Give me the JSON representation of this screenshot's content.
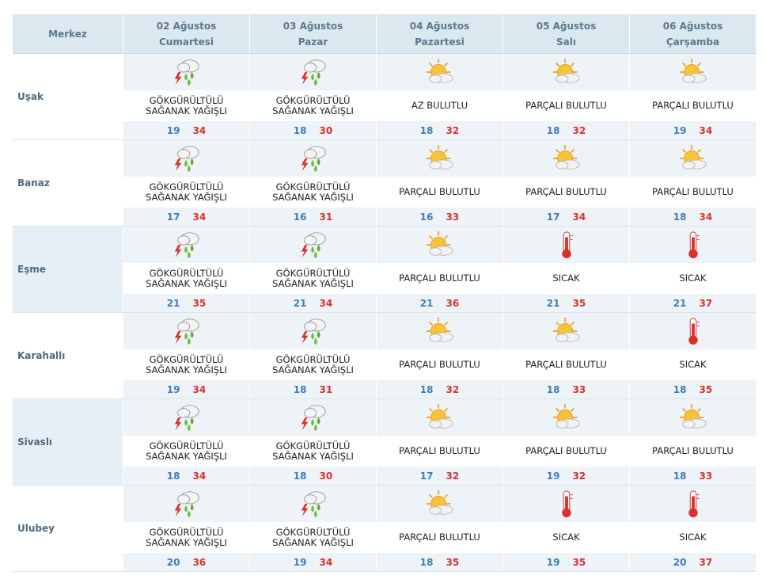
{
  "header": {
    "corner": "Merkez",
    "days": [
      {
        "date": "02 Ağustos",
        "day": "Cumartesi"
      },
      {
        "date": "03 Ağustos",
        "day": "Pazar"
      },
      {
        "date": "04 Ağustos",
        "day": "Pazartesi"
      },
      {
        "date": "05 Ağustos",
        "day": "Salı"
      },
      {
        "date": "06 Ağustos",
        "day": "Çarşamba"
      }
    ]
  },
  "rows": [
    {
      "city": "Uşak",
      "forecasts": [
        {
          "condition": "GÖKGÜRÜLTÜLÜ\nSAĞANAK YAĞIŞLI",
          "min": 19,
          "max": 34
        },
        {
          "condition": "GÖKGÜRÜLTÜLÜ\nSAĞANAK YAĞIŞLI",
          "min": 18,
          "max": 30
        },
        {
          "condition": "AZ BULUTLU",
          "min": 18,
          "max": 32
        },
        {
          "condition": "PARÇALI BULUTLU",
          "min": 18,
          "max": 32
        },
        {
          "condition": "PARÇALI BULUTLU",
          "min": 19,
          "max": 34
        }
      ]
    },
    {
      "city": "Banaz",
      "forecasts": [
        {
          "condition": "GÖKGÜRÜLTÜLÜ\nSAĞANAK YAĞIŞLI",
          "min": 17,
          "max": 34
        },
        {
          "condition": "GÖKGÜRÜLTÜLÜ\nSAĞANAK YAĞIŞLI",
          "min": 16,
          "max": 31
        },
        {
          "condition": "PARÇALI BULUTLU",
          "min": 16,
          "max": 33
        },
        {
          "condition": "PARÇALI BULUTLU",
          "min": 17,
          "max": 34
        },
        {
          "condition": "PARÇALI BULUTLU",
          "min": 18,
          "max": 34
        }
      ]
    },
    {
      "city": "Eşme",
      "forecasts": [
        {
          "condition": "GÖKGÜRÜLTÜLÜ\nSAĞANAK YAĞIŞLI",
          "min": 21,
          "max": 35
        },
        {
          "condition": "GÖKGÜRÜLTÜLÜ\nSAĞANAK YAĞIŞLI",
          "min": 21,
          "max": 34
        },
        {
          "condition": "PARÇALI BULUTLU",
          "min": 21,
          "max": 36
        },
        {
          "condition": "SICAK",
          "min": 21,
          "max": 35
        },
        {
          "condition": "SICAK",
          "min": 21,
          "max": 37
        }
      ]
    },
    {
      "city": "Karahallı",
      "forecasts": [
        {
          "condition": "GÖKGÜRÜLTÜLÜ\nSAĞANAK YAĞIŞLI",
          "min": 19,
          "max": 34
        },
        {
          "condition": "GÖKGÜRÜLTÜLÜ\nSAĞANAK YAĞIŞLI",
          "min": 18,
          "max": 31
        },
        {
          "condition": "PARÇALI BULUTLU",
          "min": 18,
          "max": 32
        },
        {
          "condition": "PARÇALI BULUTLU",
          "min": 18,
          "max": 33
        },
        {
          "condition": "SICAK",
          "min": 18,
          "max": 35
        }
      ]
    },
    {
      "city": "Sivaslı",
      "forecasts": [
        {
          "condition": "GÖKGÜRÜLTÜLÜ\nSAĞANAK YAĞIŞLI",
          "min": 18,
          "max": 34
        },
        {
          "condition": "GÖKGÜRÜLTÜLÜ\nSAĞANAK YAĞIŞLI",
          "min": 18,
          "max": 30
        },
        {
          "condition": "PARÇALI BULUTLU",
          "min": 17,
          "max": 32
        },
        {
          "condition": "PARÇALI BULUTLU",
          "min": 19,
          "max": 32
        },
        {
          "condition": "PARÇALI BULUTLU",
          "min": 18,
          "max": 33
        }
      ]
    },
    {
      "city": "Ulubey",
      "forecasts": [
        {
          "condition": "GÖKGÜRÜLTÜLÜ\nSAĞANAK YAĞIŞLI",
          "min": 20,
          "max": 36
        },
        {
          "condition": "GÖKGÜRÜLTÜLÜ\nSAĞANAK YAĞIŞLI",
          "min": 19,
          "max": 34
        },
        {
          "condition": "PARÇALI BULUTLU",
          "min": 18,
          "max": 35
        },
        {
          "condition": "SICAK",
          "min": 19,
          "max": 35
        },
        {
          "condition": "SICAK",
          "min": 20,
          "max": 37
        }
      ]
    }
  ]
}
